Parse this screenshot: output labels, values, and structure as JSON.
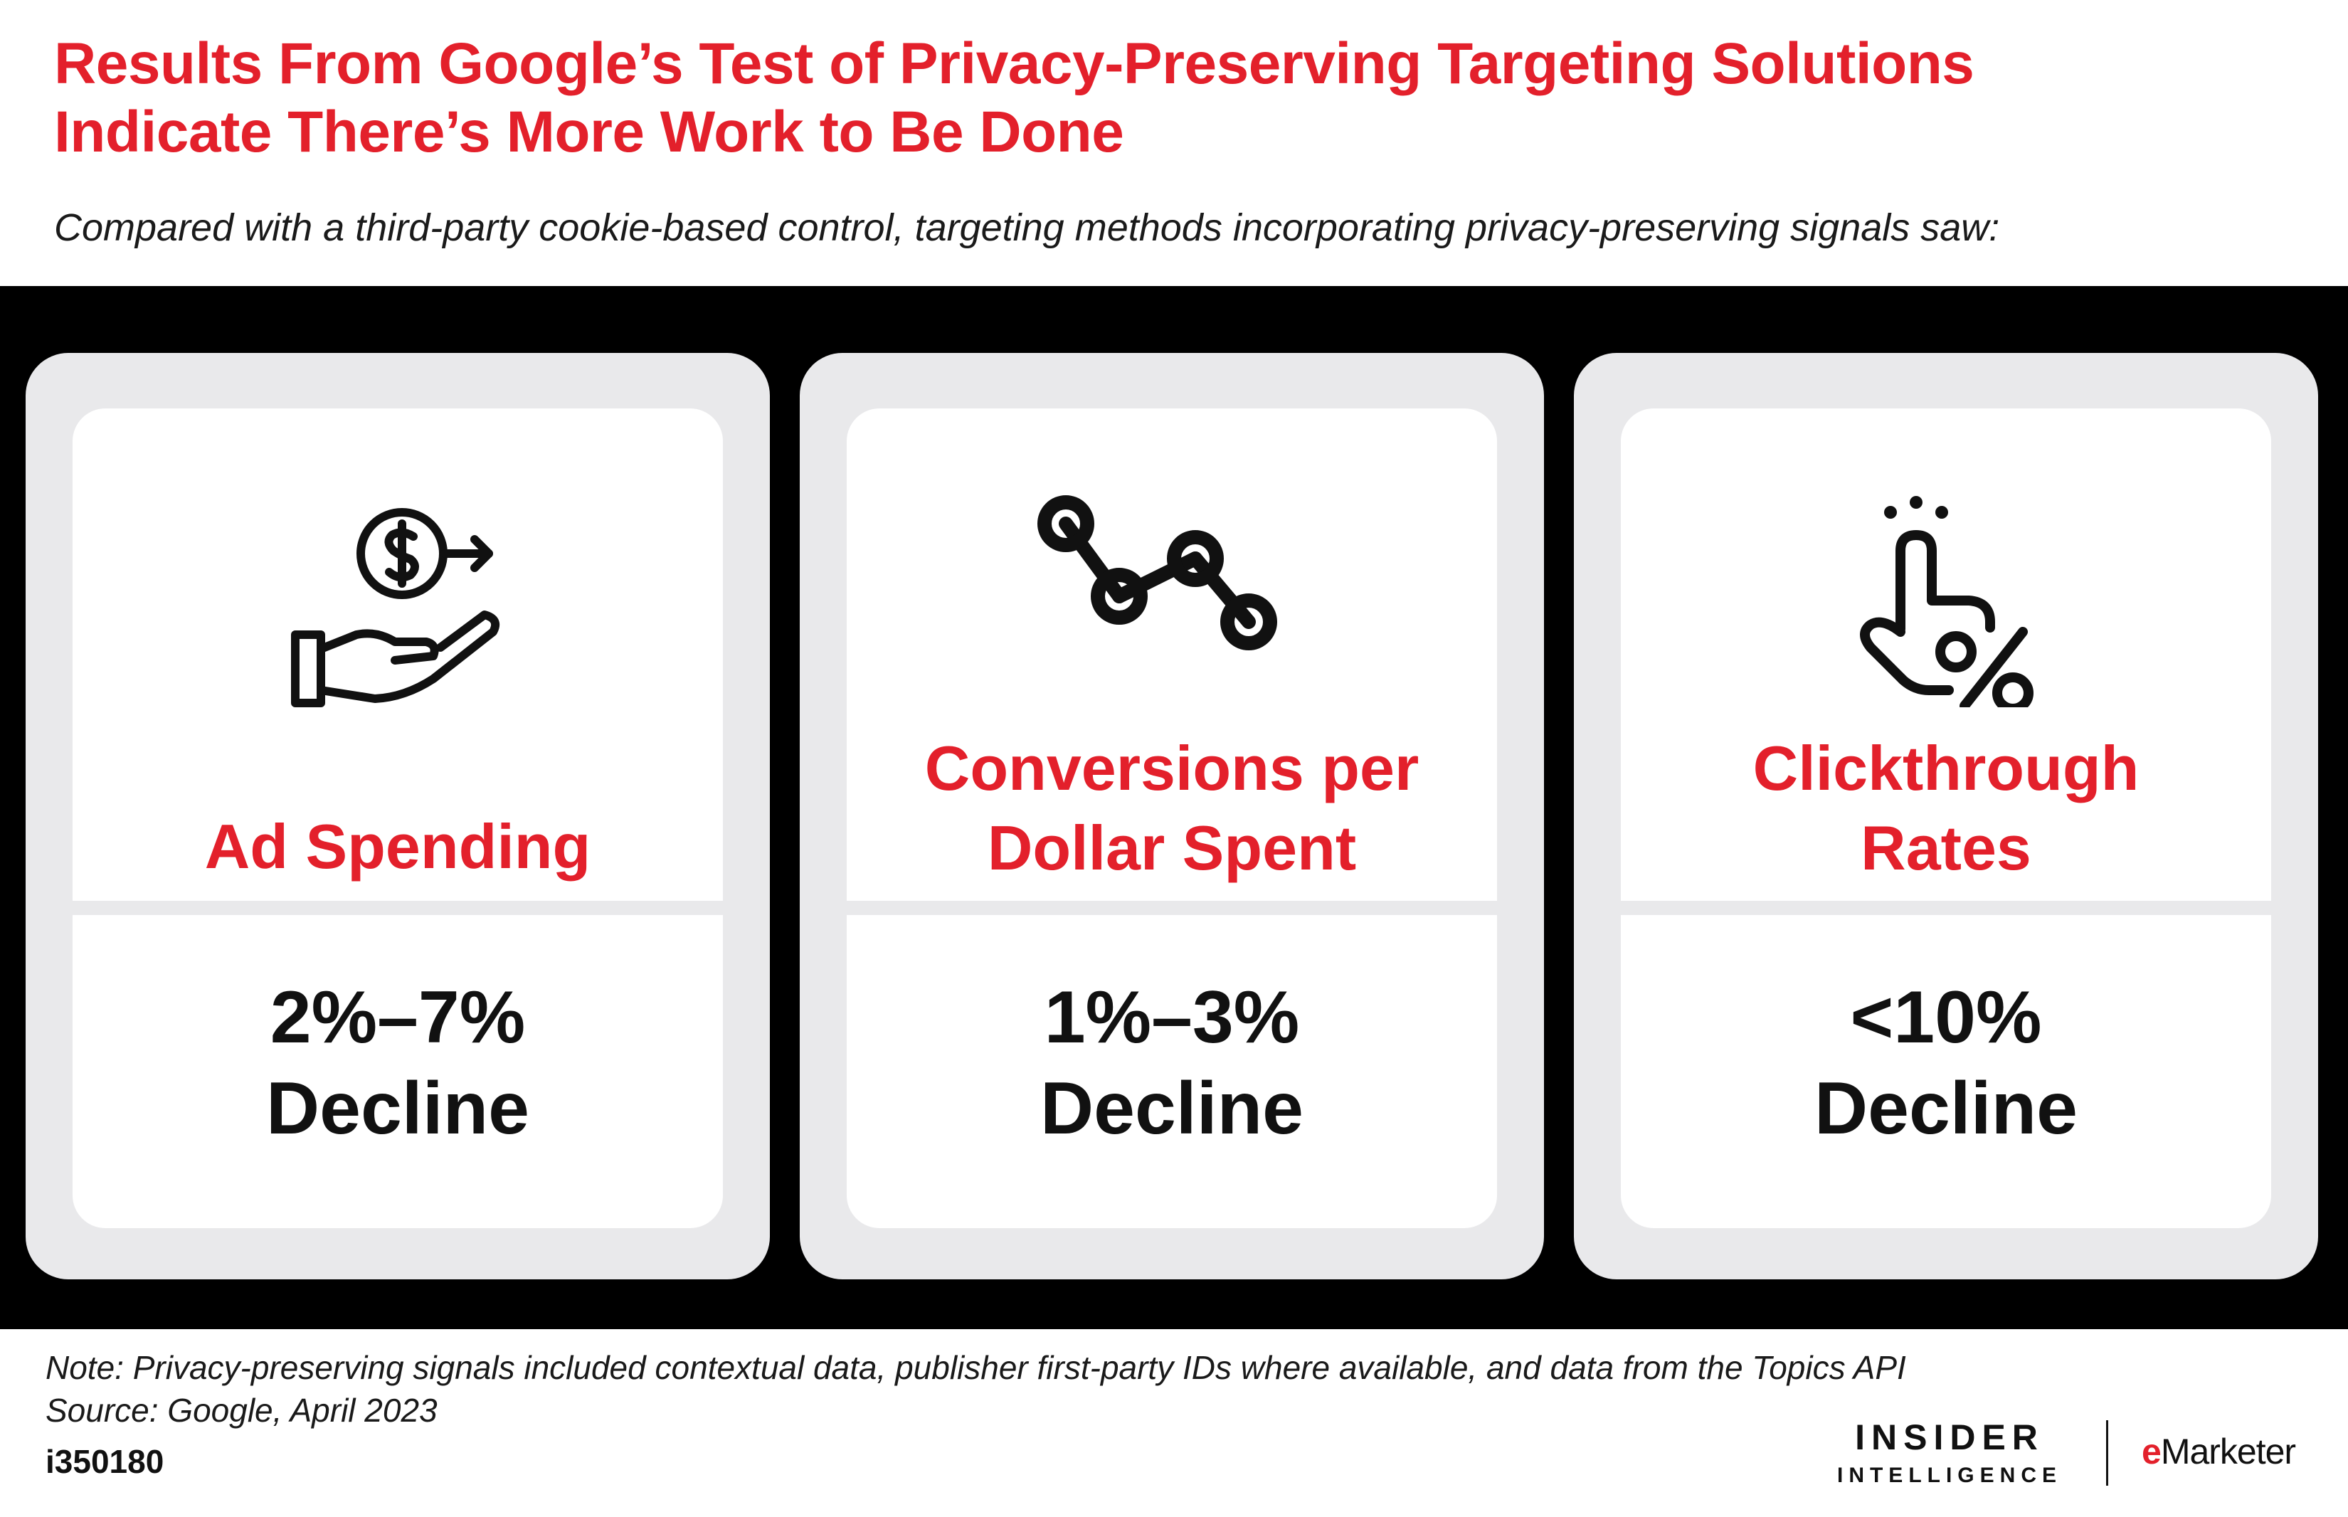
{
  "header": {
    "title_line1": "Results From Google’s Test of Privacy-Preserving Targeting Solutions",
    "title_line2": "Indicate There’s More Work to Be Done",
    "subtitle": "Compared with a third-party cookie-based control, targeting methods incorporating privacy-preserving signals saw:"
  },
  "cards": [
    {
      "icon": "money-hand-icon",
      "metric_line1": "Ad Spending",
      "metric_line2": "",
      "value_line1": "2%–7%",
      "value_line2": "Decline"
    },
    {
      "icon": "trend-line-down-icon",
      "metric_line1": "Conversions per",
      "metric_line2": "Dollar Spent",
      "value_line1": "1%–3%",
      "value_line2": "Decline"
    },
    {
      "icon": "tap-percent-icon",
      "metric_line1": "Clickthrough",
      "metric_line2": "Rates",
      "value_line1": "<10%",
      "value_line2": "Decline"
    }
  ],
  "footer": {
    "note": "Note: Privacy-preserving signals included contextual data, publisher first-party IDs where available, and data from the Topics API",
    "source": "Source: Google, April 2023",
    "chart_id": "i350180",
    "brand_line1": "INSIDER",
    "brand_line2": "INTELLIGENCE",
    "brand2_e": "e",
    "brand2_rest": "Marketer"
  },
  "colors": {
    "accent": "#e3202b",
    "band": "#000000",
    "card_frame": "#e9e9eb",
    "card_face": "#ffffff",
    "text": "#111111"
  }
}
